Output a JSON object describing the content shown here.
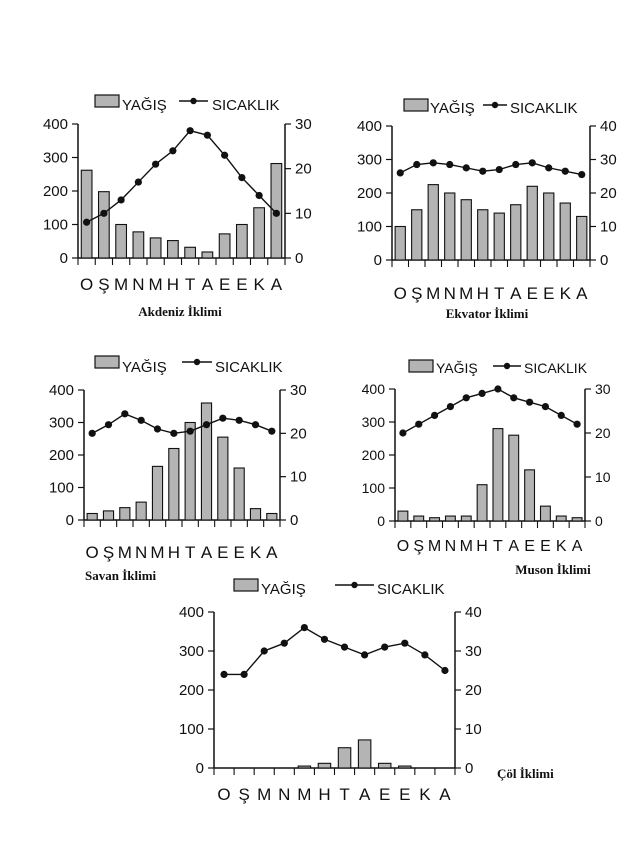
{
  "chart_data": [
    {
      "type": "bar+line",
      "caption": "Akdeniz İklimi",
      "legend": [
        "YAĞIŞ",
        "SICAKLIK"
      ],
      "categories": [
        "O",
        "Ş",
        "M",
        "N",
        "M",
        "H",
        "T",
        "A",
        "E",
        "E",
        "K",
        "A"
      ],
      "ylim_left": [
        0,
        400
      ],
      "yticks_left": [
        "0",
        "100",
        "200",
        "300",
        "400"
      ],
      "ylim_right": [
        0,
        30
      ],
      "yticks_right": [
        "0",
        "10",
        "20",
        "30"
      ],
      "series": [
        {
          "name": "YAĞIŞ",
          "kind": "bar",
          "axis": "left",
          "values": [
            262,
            198,
            100,
            78,
            60,
            52,
            32,
            18,
            72,
            100,
            150,
            282
          ]
        },
        {
          "name": "SICAKLIK",
          "kind": "line",
          "axis": "right",
          "values": [
            8,
            10,
            13,
            17,
            21,
            24,
            28.5,
            27.5,
            23,
            18,
            14,
            10
          ]
        }
      ]
    },
    {
      "type": "bar+line",
      "caption": "Ekvator İklimi",
      "legend": [
        "YAĞIŞ",
        "SICAKLIK"
      ],
      "categories": [
        "O",
        "Ş",
        "M",
        "N",
        "M",
        "H",
        "T",
        "A",
        "E",
        "E",
        "K",
        "A"
      ],
      "ylim_left": [
        0,
        400
      ],
      "yticks_left": [
        "0",
        "100",
        "200",
        "300",
        "400"
      ],
      "ylim_right": [
        0,
        40
      ],
      "yticks_right": [
        "0",
        "10",
        "20",
        "30",
        "40"
      ],
      "series": [
        {
          "name": "YAĞIŞ",
          "kind": "bar",
          "axis": "left",
          "values": [
            100,
            150,
            225,
            200,
            180,
            150,
            140,
            165,
            220,
            200,
            170,
            130
          ]
        },
        {
          "name": "SICAKLIK",
          "kind": "line",
          "axis": "right",
          "values": [
            26,
            28.5,
            29,
            28.5,
            27.5,
            26.5,
            27,
            28.5,
            29,
            27.5,
            26.5,
            25.5
          ]
        }
      ]
    },
    {
      "type": "bar+line",
      "caption": "Savan İklimi",
      "legend": [
        "YAĞIŞ",
        "SICAKLIK"
      ],
      "categories": [
        "O",
        "Ş",
        "M",
        "N",
        "M",
        "H",
        "T",
        "A",
        "E",
        "E",
        "K",
        "A"
      ],
      "ylim_left": [
        0,
        400
      ],
      "yticks_left": [
        "0",
        "100",
        "200",
        "300",
        "400"
      ],
      "ylim_right": [
        0,
        30
      ],
      "yticks_right": [
        "0",
        "10",
        "20",
        "30"
      ],
      "series": [
        {
          "name": "YAĞIŞ",
          "kind": "bar",
          "axis": "left",
          "values": [
            20,
            28,
            38,
            55,
            165,
            220,
            300,
            360,
            255,
            160,
            35,
            20
          ]
        },
        {
          "name": "SICAKLIK",
          "kind": "line",
          "axis": "right",
          "values": [
            20,
            22,
            24.5,
            23,
            21,
            20,
            20.5,
            22,
            23.5,
            23,
            22,
            20.5
          ]
        }
      ]
    },
    {
      "type": "bar+line",
      "caption": "Muson İklimi",
      "legend": [
        "YAĞIŞ",
        "SICAKLIK"
      ],
      "categories": [
        "O",
        "Ş",
        "M",
        "N",
        "M",
        "H",
        "T",
        "A",
        "E",
        "E",
        "K",
        "A"
      ],
      "ylim_left": [
        0,
        400
      ],
      "yticks_left": [
        "0",
        "100",
        "200",
        "300",
        "400"
      ],
      "ylim_right": [
        0,
        30
      ],
      "yticks_right": [
        "0",
        "10",
        "20",
        "30"
      ],
      "series": [
        {
          "name": "YAĞIŞ",
          "kind": "bar",
          "axis": "left",
          "values": [
            30,
            15,
            10,
            15,
            15,
            110,
            280,
            260,
            155,
            45,
            15,
            10
          ]
        },
        {
          "name": "SICAKLIK",
          "kind": "line",
          "axis": "right",
          "values": [
            20,
            22,
            24,
            26,
            28,
            29,
            30,
            28,
            27,
            26,
            24,
            22
          ]
        }
      ]
    },
    {
      "type": "bar+line",
      "caption": "Çöl İklimi",
      "legend": [
        "YAĞIŞ",
        "SICAKLIK"
      ],
      "categories": [
        "O",
        "Ş",
        "M",
        "N",
        "M",
        "H",
        "T",
        "A",
        "E",
        "E",
        "K",
        "A"
      ],
      "ylim_left": [
        0,
        400
      ],
      "yticks_left": [
        "0",
        "100",
        "200",
        "300",
        "400"
      ],
      "ylim_right": [
        0,
        40
      ],
      "yticks_right": [
        "0",
        "10",
        "20",
        "30",
        "40"
      ],
      "series": [
        {
          "name": "YAĞIŞ",
          "kind": "bar",
          "axis": "left",
          "values": [
            0,
            0,
            0,
            0,
            5,
            12,
            52,
            72,
            12,
            5,
            0,
            0
          ]
        },
        {
          "name": "SICAKLIK",
          "kind": "line",
          "axis": "right",
          "values": [
            24,
            24,
            30,
            32,
            36,
            33,
            31,
            29,
            31,
            32,
            29,
            25
          ]
        }
      ]
    }
  ],
  "colors": {
    "bar_fill": "#b4b4b4",
    "ink": "#111111"
  }
}
